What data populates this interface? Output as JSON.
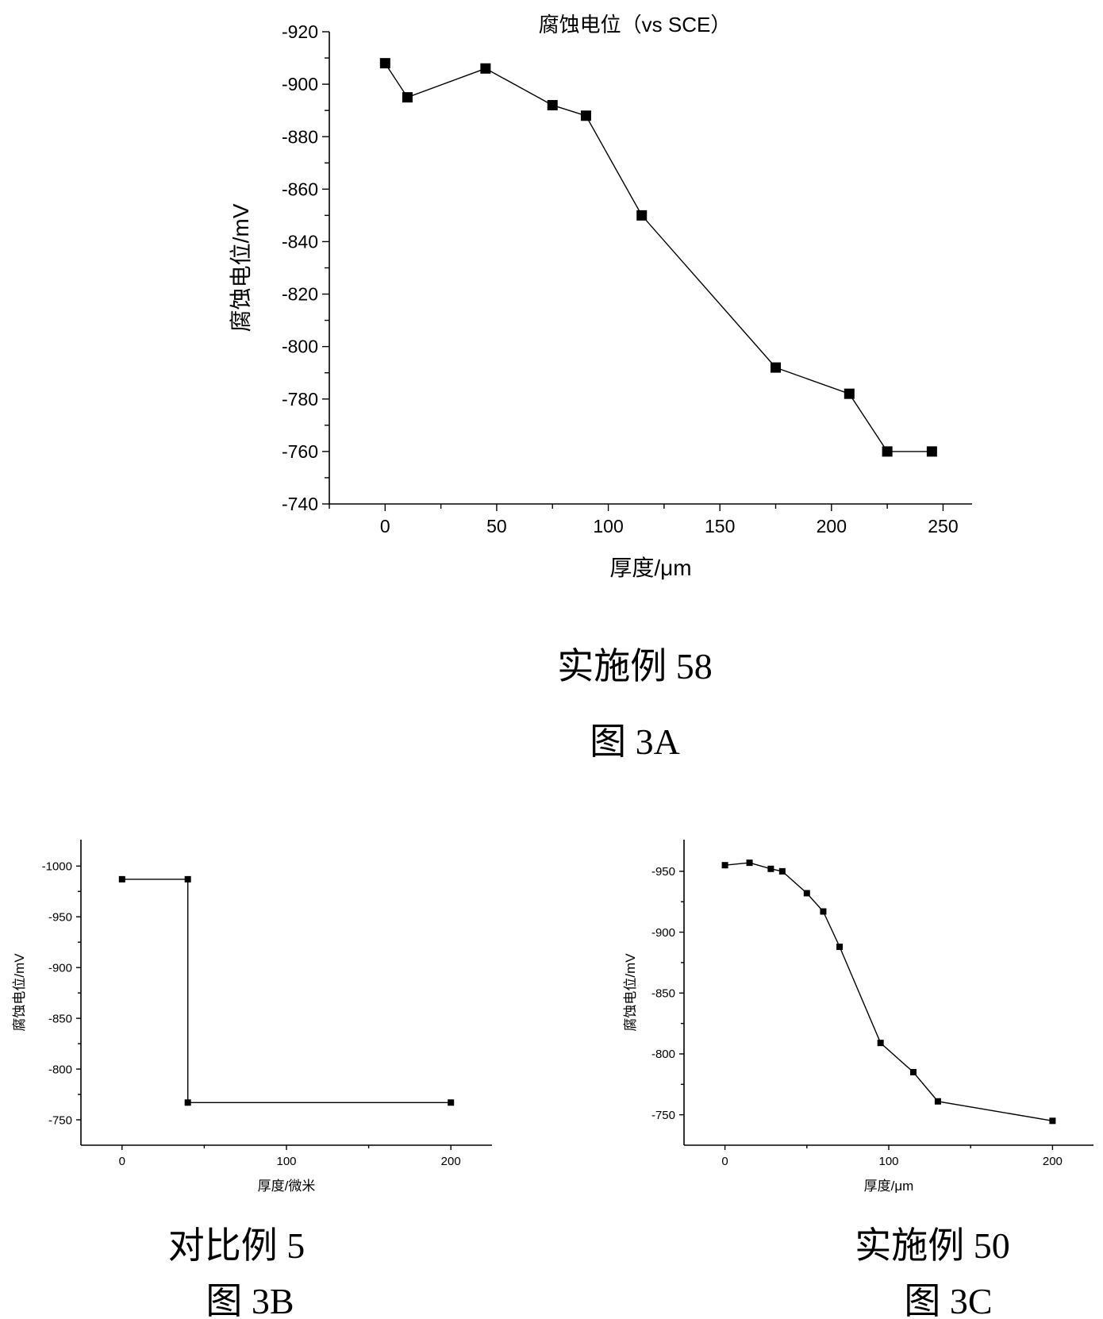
{
  "chart_data": [
    {
      "id": "A",
      "type": "line",
      "title": "腐蚀电位（vs SCE）",
      "xlabel": "厚度/μm",
      "ylabel": "腐蚀电位/mV",
      "xlim": [
        -25,
        263
      ],
      "ylim": [
        -740,
        -920
      ],
      "xticks": [
        "0",
        "50",
        "100",
        "150",
        "200",
        "250"
      ],
      "yticks": [
        "-920",
        "-900",
        "-880",
        "-860",
        "-840",
        "-820",
        "-800",
        "-780",
        "-760",
        "-740"
      ],
      "x": [
        0,
        10,
        45,
        75,
        90,
        115,
        175,
        208,
        225,
        245
      ],
      "y": [
        -908,
        -895,
        -906,
        -892,
        -888,
        -850,
        -792,
        -782,
        -760,
        -760
      ],
      "marker": "square",
      "caption_lines": [
        "实施例 58",
        "图 3A"
      ]
    },
    {
      "id": "B",
      "type": "line",
      "title": "",
      "xlabel": "厚度/微米",
      "ylabel": "腐蚀电位/mV",
      "xlim": [
        -25,
        225
      ],
      "ylim": [
        -725,
        -1026
      ],
      "xticks": [
        "0",
        "100",
        "200"
      ],
      "yticks": [
        "-1000",
        "-950",
        "-900",
        "-850",
        "-800",
        "-750"
      ],
      "x": [
        0,
        40,
        40,
        200
      ],
      "y": [
        -987,
        -987,
        -767,
        -767
      ],
      "marker": "square",
      "caption_lines": [
        "对比例 5",
        "图 3B"
      ]
    },
    {
      "id": "C",
      "type": "line",
      "title": "",
      "xlabel": "厚度/μm",
      "ylabel": "腐蚀电位/mV",
      "xlim": [
        -25,
        225
      ],
      "ylim": [
        -725,
        -976
      ],
      "xticks": [
        "0",
        "100",
        "200"
      ],
      "yticks": [
        "-950",
        "-900",
        "-850",
        "-800",
        "-750"
      ],
      "x": [
        0,
        15,
        28,
        35,
        50,
        60,
        70,
        95,
        115,
        130,
        200
      ],
      "y": [
        -955,
        -957,
        -952,
        -950,
        -932,
        -917,
        -888,
        -809,
        -785,
        -761,
        -745
      ],
      "marker": "square",
      "caption_lines": [
        "实施例 50",
        "图 3C"
      ]
    }
  ]
}
